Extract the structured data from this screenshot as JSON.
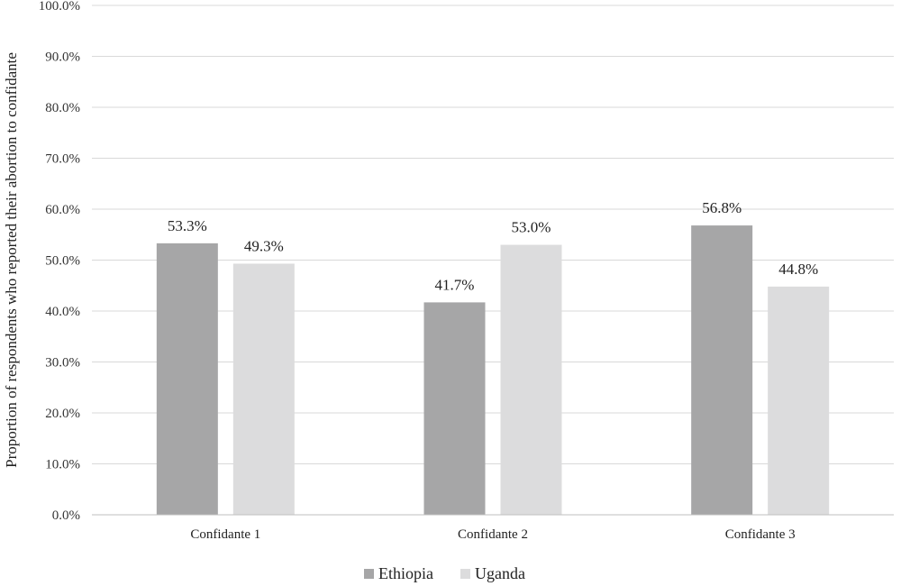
{
  "chart_data": {
    "type": "bar",
    "title": "",
    "xlabel": "",
    "ylabel": "Proportion of respondents who reported their abortion to confidante",
    "categories": [
      "Confidante 1",
      "Confidante 2",
      "Confidante 3"
    ],
    "series": [
      {
        "name": "Ethiopia",
        "values": [
          53.3,
          41.7,
          56.8
        ],
        "labels": [
          "53.3%",
          "41.7%",
          "56.8%"
        ],
        "color": "#a6a6a7"
      },
      {
        "name": "Uganda",
        "values": [
          49.3,
          53.0,
          44.8
        ],
        "labels": [
          "49.3%",
          "53.0%",
          "44.8%"
        ],
        "color": "#dcdcdd"
      }
    ],
    "ylim": [
      0,
      100
    ],
    "yticks": [
      0,
      10,
      20,
      30,
      40,
      50,
      60,
      70,
      80,
      90,
      100
    ],
    "ytick_labels": [
      "0.0%",
      "10.0%",
      "20.0%",
      "30.0%",
      "40.0%",
      "50.0%",
      "60.0%",
      "70.0%",
      "80.0%",
      "90.0%",
      "100.0%"
    ],
    "grid": true,
    "gridline_color": "#d9d9d9",
    "legend_position": "bottom"
  }
}
